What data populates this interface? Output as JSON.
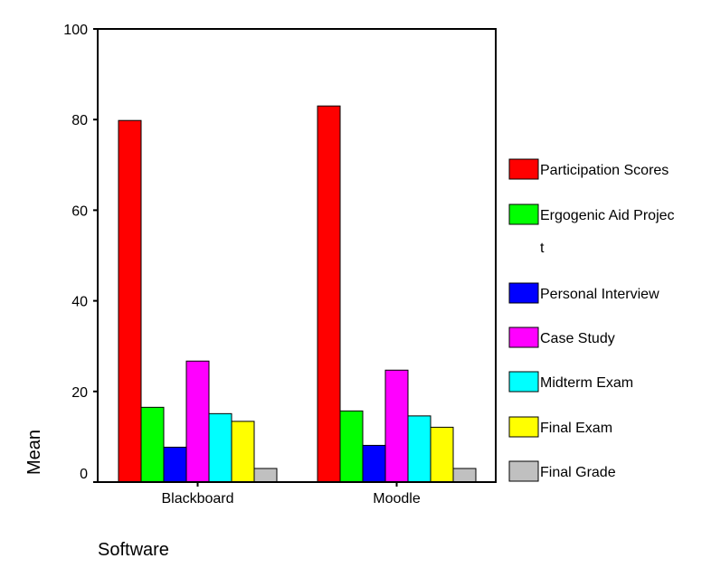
{
  "chart_data": {
    "type": "bar",
    "xlabel": "Software",
    "ylabel": "Mean",
    "ylim": [
      0,
      100
    ],
    "yticks": [
      "0",
      "20",
      "40",
      "60",
      "80",
      "100"
    ],
    "categories": [
      "Blackboard",
      "Moodle"
    ],
    "series": [
      {
        "name": "Participation Scores",
        "color": "#ff0000",
        "values": [
          79.8,
          83.0
        ]
      },
      {
        "name": "Ergogenic Aid Project",
        "color": "#00ff00",
        "values": [
          16.5,
          15.7
        ]
      },
      {
        "name": "Personal Interview",
        "color": "#0000ff",
        "values": [
          7.7,
          8.1
        ]
      },
      {
        "name": "Case Study",
        "color": "#ff00ff",
        "values": [
          26.7,
          24.7
        ]
      },
      {
        "name": "Midterm Exam",
        "color": "#00ffff",
        "values": [
          15.1,
          14.6
        ]
      },
      {
        "name": "Final Exam",
        "color": "#ffff00",
        "values": [
          13.4,
          12.1
        ]
      },
      {
        "name": "Final Grade",
        "color": "#c0c0c0",
        "values": [
          3.0,
          3.0
        ]
      }
    ],
    "legend_position": "right",
    "grid": false
  }
}
